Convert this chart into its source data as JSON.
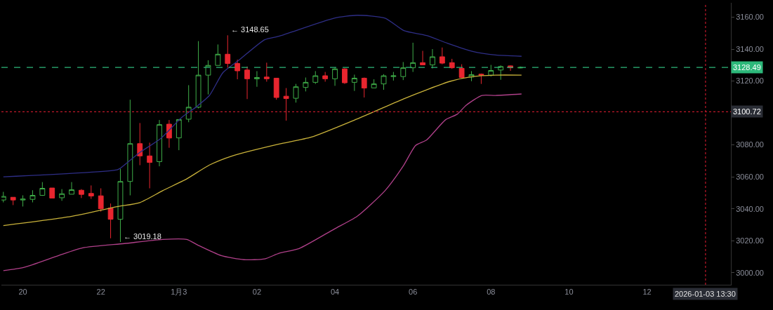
{
  "chart_data": {
    "type": "candlestick",
    "x": [
      "2026-01-02T19:30",
      "2026-01-02T19:45",
      "2026-01-02T20:00",
      "2026-01-02T20:15",
      "2026-01-02T20:30",
      "2026-01-02T20:45",
      "2026-01-02T21:00",
      "2026-01-02T21:15",
      "2026-01-02T21:30",
      "2026-01-02T21:45",
      "2026-01-02T22:00",
      "2026-01-02T22:15",
      "2026-01-02T22:30",
      "2026-01-02T22:45",
      "2026-01-02T23:00",
      "2026-01-02T23:15",
      "2026-01-02T23:30",
      "2026-01-02T23:45",
      "2026-01-03T00:00",
      "2026-01-03T00:15",
      "2026-01-03T00:30",
      "2026-01-03T00:45",
      "2026-01-03T01:00",
      "2026-01-03T01:15",
      "2026-01-03T01:30",
      "2026-01-03T01:45",
      "2026-01-03T02:00",
      "2026-01-03T02:15",
      "2026-01-03T02:30",
      "2026-01-03T02:45",
      "2026-01-03T03:00",
      "2026-01-03T03:15",
      "2026-01-03T03:30",
      "2026-01-03T03:45",
      "2026-01-03T04:00",
      "2026-01-03T04:15",
      "2026-01-03T04:30",
      "2026-01-03T04:45",
      "2026-01-03T05:00",
      "2026-01-03T05:15",
      "2026-01-03T05:30",
      "2026-01-03T05:45",
      "2026-01-03T06:00",
      "2026-01-03T06:15",
      "2026-01-03T06:30",
      "2026-01-03T06:45",
      "2026-01-03T07:00",
      "2026-01-03T07:15",
      "2026-01-03T07:30",
      "2026-01-03T07:45",
      "2026-01-03T08:00",
      "2026-01-03T08:15",
      "2026-01-03T08:30",
      "2026-01-03T08:45"
    ],
    "ohlc": [
      [
        3045.5,
        3050.6,
        3044.0,
        3047.7
      ],
      [
        3047.2,
        3047.3,
        3042.3,
        3045.5
      ],
      [
        3045.5,
        3048.4,
        3041.4,
        3046.1
      ],
      [
        3045.9,
        3051.6,
        3044.0,
        3048.4
      ],
      [
        3048.4,
        3056.7,
        3048.1,
        3052.8
      ],
      [
        3053.0,
        3053.0,
        3046.7,
        3046.7
      ],
      [
        3046.9,
        3052.3,
        3045.0,
        3049.4
      ],
      [
        3049.1,
        3056.7,
        3049.1,
        3051.9
      ],
      [
        3051.6,
        3052.3,
        3046.7,
        3049.0
      ],
      [
        3049.6,
        3054.6,
        3046.2,
        3048.0
      ],
      [
        3048.1,
        3052.8,
        3038.2,
        3040.0
      ],
      [
        3040.4,
        3043.3,
        3021.5,
        3033.4
      ],
      [
        3033.4,
        3065.1,
        3019.18,
        3057.1
      ],
      [
        3057.1,
        3108.3,
        3048.4,
        3080.8
      ],
      [
        3080.8,
        3093.7,
        3067.3,
        3073.1
      ],
      [
        3073.1,
        3081.4,
        3052.8,
        3069.0
      ],
      [
        3069.5,
        3095.6,
        3066.6,
        3092.7
      ],
      [
        3093.0,
        3095.6,
        3078.2,
        3084.3
      ],
      [
        3084.4,
        3095.9,
        3076.7,
        3095.9
      ],
      [
        3096.1,
        3117.4,
        3094.2,
        3103.6
      ],
      [
        3103.6,
        3145.0,
        3102.9,
        3123.7
      ],
      [
        3123.7,
        3133.0,
        3111.6,
        3129.8
      ],
      [
        3129.8,
        3142.9,
        3129.8,
        3136.8
      ],
      [
        3136.8,
        3148.65,
        3128.3,
        3131.0
      ],
      [
        3131.0,
        3133.4,
        3121.1,
        3126.4
      ],
      [
        3126.9,
        3129.1,
        3108.7,
        3121.4
      ],
      [
        3121.4,
        3126.2,
        3116.4,
        3122.2
      ],
      [
        3122.5,
        3131.5,
        3119.6,
        3121.4
      ],
      [
        3121.8,
        3121.8,
        3108.3,
        3109.7
      ],
      [
        3110.5,
        3115.6,
        3095.2,
        3109.0
      ],
      [
        3109.2,
        3118.2,
        3106.5,
        3116.4
      ],
      [
        3116.0,
        3122.2,
        3113.5,
        3119.2
      ],
      [
        3119.2,
        3126.2,
        3118.2,
        3123.3
      ],
      [
        3123.3,
        3125.7,
        3119.6,
        3121.4
      ],
      [
        3121.4,
        3128.3,
        3117.0,
        3127.6
      ],
      [
        3127.6,
        3128.0,
        3118.2,
        3118.9
      ],
      [
        3119.2,
        3124.0,
        3113.8,
        3121.8
      ],
      [
        3121.8,
        3122.2,
        3109.7,
        3115.6
      ],
      [
        3115.7,
        3121.1,
        3115.7,
        3118.2
      ],
      [
        3118.2,
        3124.3,
        3114.5,
        3123.3
      ],
      [
        3122.8,
        3125.7,
        3120.3,
        3123.3
      ],
      [
        3122.8,
        3131.9,
        3120.6,
        3128.3
      ],
      [
        3128.3,
        3144.0,
        3125.7,
        3131.5
      ],
      [
        3131.5,
        3138.9,
        3130.1,
        3130.1
      ],
      [
        3130.1,
        3140.0,
        3127.9,
        3135.2
      ],
      [
        3135.2,
        3141.0,
        3130.5,
        3131.2
      ],
      [
        3131.5,
        3133.9,
        3127.6,
        3128.3
      ],
      [
        3128.0,
        3130.5,
        3121.8,
        3122.2
      ],
      [
        3122.5,
        3126.2,
        3119.9,
        3124.0
      ],
      [
        3124.3,
        3124.7,
        3118.2,
        3123.7
      ],
      [
        3123.7,
        3130.1,
        3122.8,
        3126.6
      ],
      [
        3126.9,
        3129.8,
        3120.8,
        3129.1
      ],
      [
        3129.5,
        3129.8,
        3126.4,
        3128.3
      ],
      [
        3128.2,
        3129.1,
        3128.0,
        3128.49
      ]
    ],
    "colors": [
      "#3fae49",
      "#e8262f",
      "#3fae49",
      "#3fae49",
      "#3fae49",
      "#e8262f",
      "#3fae49",
      "#3fae49",
      "#e8262f",
      "#e8262f",
      "#e8262f",
      "#e8262f",
      "#3fae49",
      "#3fae49",
      "#e8262f",
      "#e8262f",
      "#3fae49",
      "#e8262f",
      "#3fae49",
      "#3fae49",
      "#3fae49",
      "#3fae49",
      "#3fae49",
      "#e8262f",
      "#e8262f",
      "#e8262f",
      "#3fae49",
      "#e8262f",
      "#e8262f",
      "#e8262f",
      "#3fae49",
      "#3fae49",
      "#3fae49",
      "#e8262f",
      "#3fae49",
      "#e8262f",
      "#3fae49",
      "#e8262f",
      "#3fae49",
      "#3fae49",
      "#3fae49",
      "#3fae49",
      "#3fae49",
      "#e8262f",
      "#3fae49",
      "#e8262f",
      "#e8262f",
      "#e8262f",
      "#3fae49",
      "#e8262f",
      "#3fae49",
      "#3fae49",
      "#e8262f",
      "#3fae49"
    ],
    "series": [
      {
        "type": "line",
        "color": "#2e2e86",
        "x": [
          "2026-01-02T19:30",
          "2026-01-02T22:25",
          "2026-01-02T22:31",
          "2026-01-02T23:00",
          "2026-01-02T23:32",
          "2026-01-03T00:04",
          "2026-01-03T00:26",
          "2026-01-03T00:47",
          "2026-01-03T01:08",
          "2026-01-03T01:33",
          "2026-01-03T02:12",
          "2026-01-03T02:34",
          "2026-01-03T03:59",
          "2026-01-03T04:34",
          "2026-01-03T05:17",
          "2026-01-03T05:46",
          "2026-01-03T06:21",
          "2026-01-03T06:53",
          "2026-01-03T07:32",
          "2026-01-03T08:07",
          "2026-01-03T08:47"
        ],
        "values": [
          3060.0,
          3064.4,
          3065.7,
          3075.3,
          3084.0,
          3097.1,
          3103.6,
          3111.0,
          3125.4,
          3133.3,
          3145.9,
          3148.1,
          3159.4,
          3161.2,
          3159.4,
          3151.6,
          3148.5,
          3143.7,
          3138.5,
          3136.3,
          3135.5
        ]
      },
      {
        "type": "line",
        "color": "#c9b23a",
        "x": [
          "2026-01-02T19:30",
          "2026-01-02T21:14",
          "2026-01-02T22:25",
          "2026-01-02T23:00",
          "2026-01-02T23:35",
          "2026-01-03T00:12",
          "2026-01-03T00:47",
          "2026-01-03T01:22",
          "2026-01-03T02:34",
          "2026-01-03T03:24",
          "2026-01-03T04:34",
          "2026-01-03T05:46",
          "2026-01-03T06:21",
          "2026-01-03T06:57",
          "2026-01-03T07:32",
          "2026-01-03T08:07",
          "2026-01-03T08:47"
        ],
        "values": [
          3029.5,
          3035.2,
          3041.3,
          3043.9,
          3051.3,
          3058.7,
          3067.4,
          3073.1,
          3080.5,
          3084.9,
          3096.2,
          3108.9,
          3114.5,
          3119.8,
          3122.8,
          3123.7,
          3123.7
        ]
      },
      {
        "type": "line",
        "color": "#b0408a",
        "x": [
          "2026-01-02T19:30",
          "2026-01-02T20:02",
          "2026-01-02T20:55",
          "2026-01-02T21:32",
          "2026-01-02T22:36",
          "2026-01-02T23:35",
          "2026-01-03T00:12",
          "2026-01-03T00:29",
          "2026-01-03T01:05",
          "2026-01-03T01:40",
          "2026-01-03T02:12",
          "2026-01-03T02:34",
          "2026-01-03T03:05",
          "2026-01-03T03:59",
          "2026-01-03T04:34",
          "2026-01-03T05:17",
          "2026-01-03T05:46",
          "2026-01-03T06:04",
          "2026-01-03T06:21",
          "2026-01-03T06:50",
          "2026-01-03T07:08",
          "2026-01-03T07:22",
          "2026-01-03T07:46",
          "2026-01-03T08:07",
          "2026-01-03T08:47"
        ],
        "values": [
          3001.2,
          3003.3,
          3010.7,
          3015.5,
          3018.2,
          3020.8,
          3020.8,
          3017.3,
          3010.7,
          3008.1,
          3008.6,
          3012.1,
          3015.1,
          3027.3,
          3035.2,
          3051.3,
          3067.4,
          3079.6,
          3083.1,
          3095.7,
          3099.2,
          3104.9,
          3111.0,
          3111.0,
          3111.9
        ]
      }
    ],
    "xlim": [
      "2026-01-02T19:27",
      "2026-01-03T14:09"
    ],
    "xticks": [
      {
        "value": "2026-01-02T20:00",
        "label": "20"
      },
      {
        "value": "2026-01-02T22:00",
        "label": "22"
      },
      {
        "value": "2026-01-03T00:00",
        "label": "1月3"
      },
      {
        "value": "2026-01-03T02:00",
        "label": "02"
      },
      {
        "value": "2026-01-03T04:00",
        "label": "04"
      },
      {
        "value": "2026-01-03T06:00",
        "label": "06"
      },
      {
        "value": "2026-01-03T08:00",
        "label": "08"
      },
      {
        "value": "2026-01-03T10:00",
        "label": "10"
      },
      {
        "value": "2026-01-03T12:00",
        "label": "12"
      }
    ],
    "ylim": [
      2992.4,
      3169.0
    ],
    "yticks": [
      {
        "value": 3000,
        "label": "3000.00"
      },
      {
        "value": 3020,
        "label": "3020.00"
      },
      {
        "value": 3040,
        "label": "3040.00"
      },
      {
        "value": 3060,
        "label": "3060.00"
      },
      {
        "value": 3080,
        "label": "3080.00"
      },
      {
        "value": 3100,
        "label": null
      },
      {
        "value": 3120,
        "label": "3120.00"
      },
      {
        "value": 3140,
        "label": "3140.00"
      },
      {
        "value": 3160,
        "label": "3160.00"
      }
    ],
    "ref_lines": [
      {
        "axis": "y",
        "value": 3128.49,
        "label": "3128.49",
        "color": "#2db87a",
        "line_style": "dashed"
      },
      {
        "axis": "y",
        "value": 3100.72,
        "label": "3100.72",
        "color": "#c0182a",
        "line_style": "dotted"
      },
      {
        "axis": "x",
        "value": "2026-01-03T13:30",
        "label": "2026-01-03 13:30",
        "color": "#c0182a",
        "line_style": "dotted"
      }
    ],
    "annotations": [
      {
        "text": "← 3148.65",
        "x": "2026-01-03T01:15",
        "y": 3148.65
      },
      {
        "text": "← 3019.18",
        "x": "2026-01-02T22:30",
        "y": 3019.18
      }
    ],
    "grid": false
  }
}
